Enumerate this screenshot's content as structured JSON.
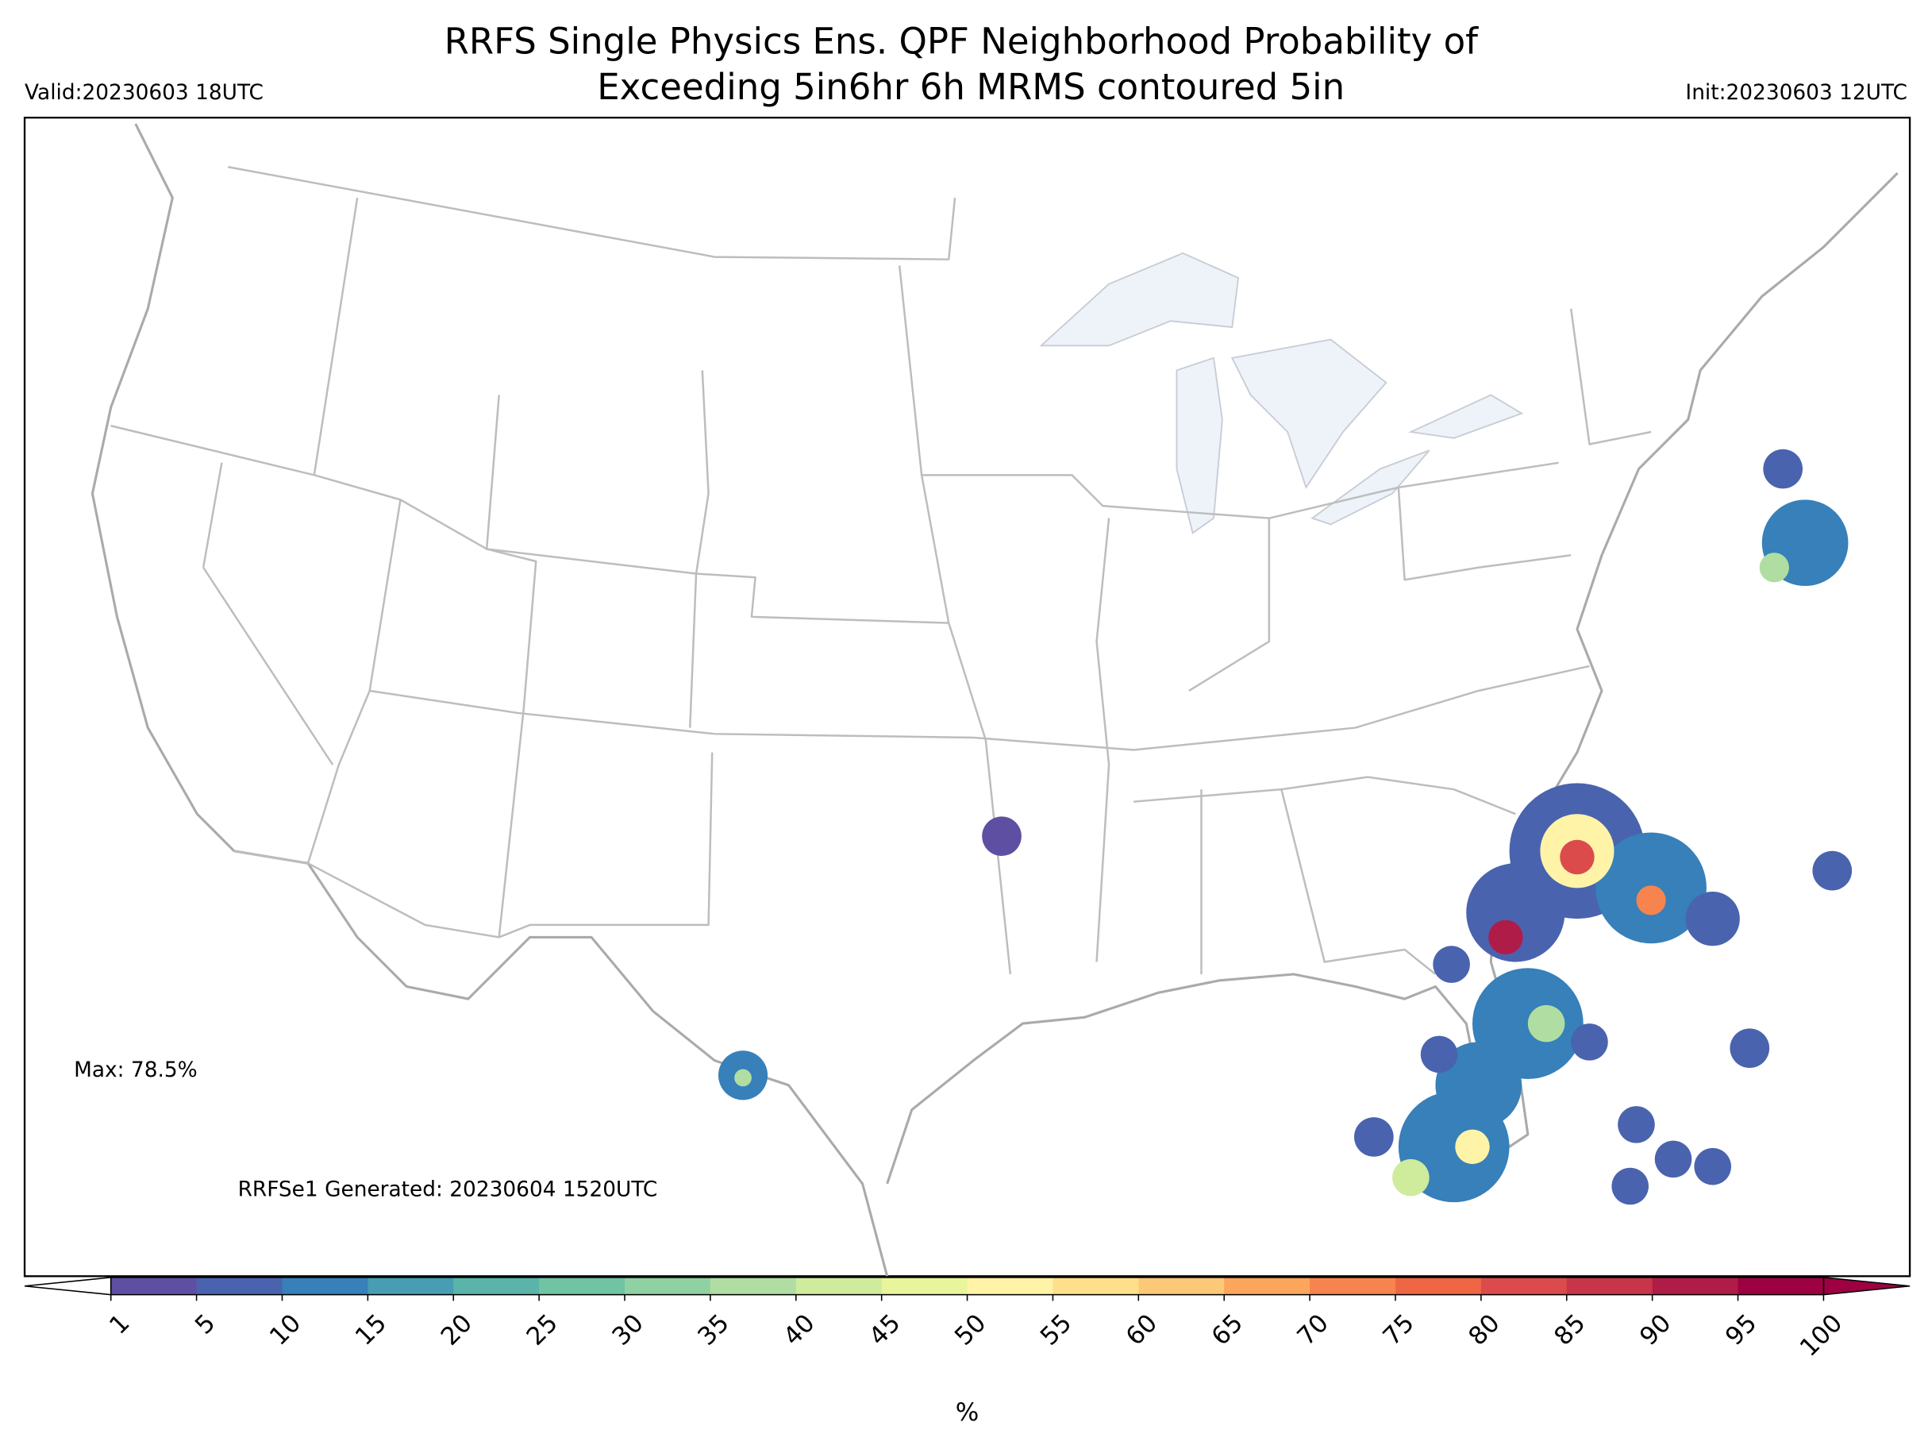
{
  "header": {
    "title": [
      "RRFS Single Physics Ens. QPF Neighborhood Probability of",
      "Exceeding 5in6hr 6h MRMS contoured 5in"
    ],
    "valid": "Valid:20230603 18UTC",
    "init": "Init:20230603 12UTC"
  },
  "map": {
    "max_label": "Max: 78.5%",
    "generated": "RRFSe1 Generated: 20230604 1520UTC"
  },
  "colorbar": {
    "ticks": [
      1,
      5,
      10,
      15,
      20,
      25,
      30,
      35,
      40,
      45,
      50,
      55,
      60,
      65,
      70,
      75,
      80,
      85,
      90,
      95,
      100
    ],
    "colors": [
      "#5e4fa2",
      "#4a63ae",
      "#3780b9",
      "#479db4",
      "#5ab4a9",
      "#70c4a3",
      "#90d1a3",
      "#b0dea2",
      "#cfeb9c",
      "#e8f59b",
      "#fff3a8",
      "#fee08b",
      "#fdc877",
      "#fca55d",
      "#f7844e",
      "#ef6645",
      "#dc4b4c",
      "#c83549",
      "#b01c48",
      "#9e0142"
    ],
    "under_color": "#ffffff",
    "over_color": "#9e0142",
    "label": "%"
  }
}
